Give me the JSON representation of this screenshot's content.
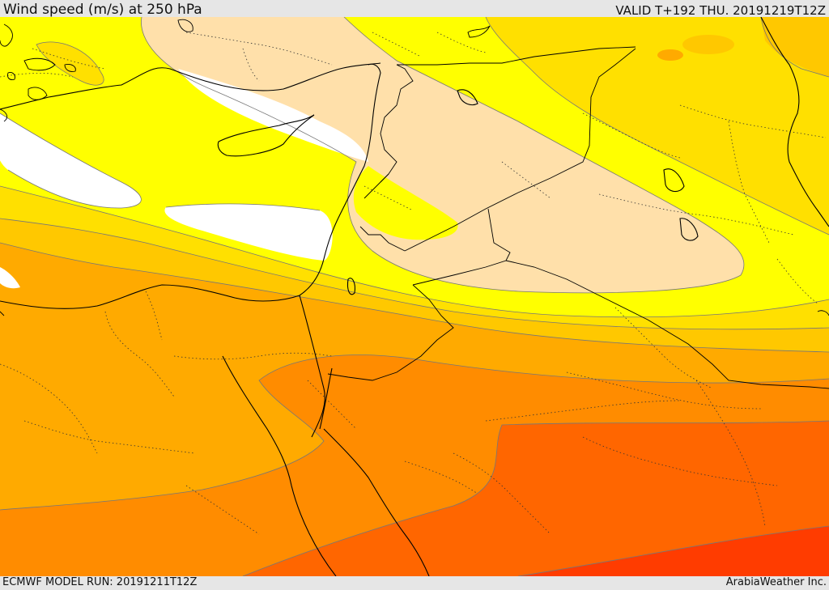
{
  "header": {
    "title": "Wind speed (m/s) at 250 hPa",
    "valid": "VALID T+192 THU. 20191219T12Z"
  },
  "footer": {
    "model_run": "ECMWF MODEL RUN: 20191211T12Z",
    "credit": "ArabiaWeather Inc."
  },
  "map": {
    "region": "Eastern Mediterranean, Egypt, Levant, Arabian Peninsula, Iraq",
    "colors": {
      "calm": "#ffffff",
      "light": "#ffe0aa",
      "yellow": "#ffff00",
      "yellow_gold": "#ffe000",
      "gold": "#ffc800",
      "orange_light": "#ffaa00",
      "orange": "#ff8c00",
      "orange_dark": "#ff6600",
      "red_orange": "#ff3c00",
      "coast_line": "#000000"
    }
  }
}
